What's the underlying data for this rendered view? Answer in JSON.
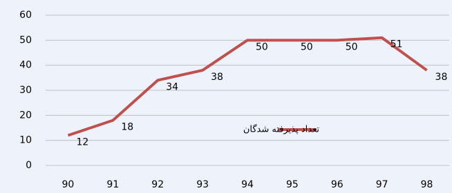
{
  "chart_data": {
    "type": "line",
    "categories": [
      "90",
      "91",
      "92",
      "93",
      "94",
      "95",
      "96",
      "97",
      "98"
    ],
    "series": [
      {
        "name": "تعداد پذیرفته شدگان",
        "color": "#c0504d",
        "values": [
          12,
          18,
          34,
          38,
          50,
          50,
          50,
          51,
          38
        ]
      }
    ],
    "ylim": [
      0,
      60
    ],
    "yticks": [
      0,
      10,
      20,
      30,
      40,
      50,
      60
    ],
    "grid": true,
    "legend": "right",
    "data_labels": true
  }
}
